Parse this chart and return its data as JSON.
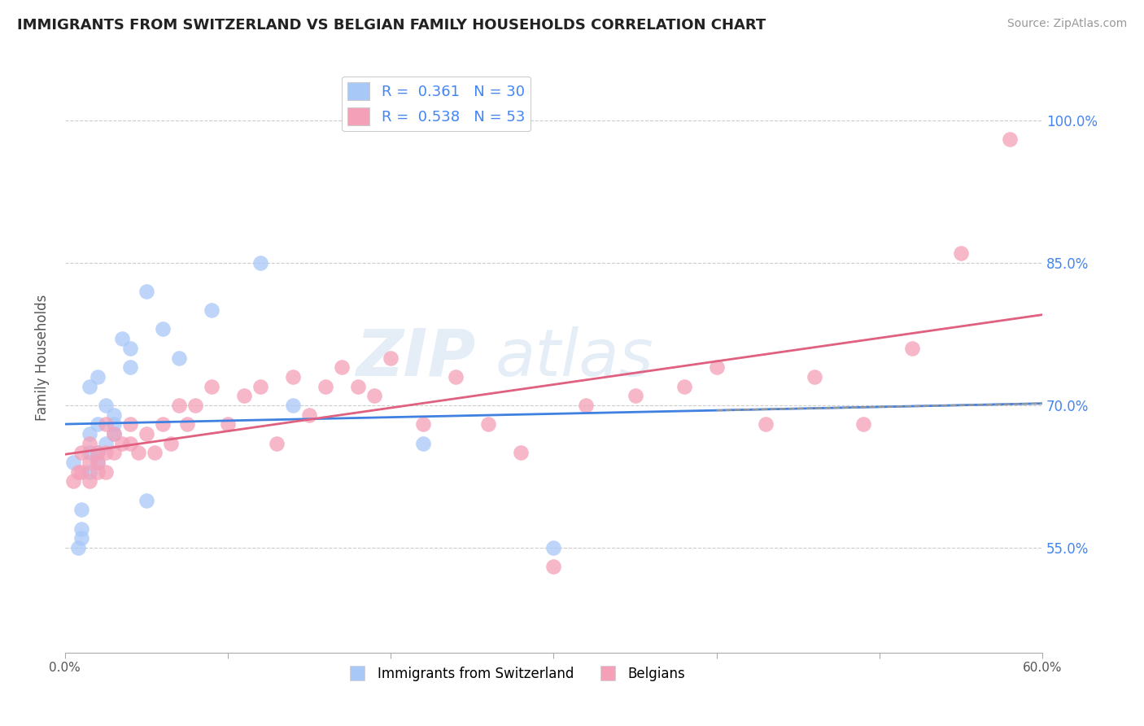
{
  "title": "IMMIGRANTS FROM SWITZERLAND VS BELGIAN FAMILY HOUSEHOLDS CORRELATION CHART",
  "source": "Source: ZipAtlas.com",
  "ylabel": "Family Households",
  "xlim": [
    0.0,
    0.6
  ],
  "ylim": [
    0.44,
    1.06
  ],
  "ytick_positions": [
    0.55,
    0.7,
    0.85,
    1.0
  ],
  "ytick_labels": [
    "55.0%",
    "70.0%",
    "85.0%",
    "100.0%"
  ],
  "xtick_positions": [
    0.0,
    0.1,
    0.2,
    0.3,
    0.4,
    0.5,
    0.6
  ],
  "xtick_labels": [
    "0.0%",
    "",
    "",
    "",
    "",
    "",
    "60.0%"
  ],
  "blue_color": "#a8c8f8",
  "pink_color": "#f4a0b8",
  "blue_line_color": "#4080e0",
  "pink_line_color": "#e06080",
  "tick_label_color": "#4285f4",
  "watermark_color": "#ccddf0",
  "swiss_x": [
    0.005,
    0.008,
    0.01,
    0.01,
    0.01,
    0.015,
    0.015,
    0.015,
    0.015,
    0.02,
    0.02,
    0.02,
    0.02,
    0.025,
    0.025,
    0.03,
    0.03,
    0.03,
    0.035,
    0.04,
    0.04,
    0.05,
    0.05,
    0.06,
    0.07,
    0.09,
    0.12,
    0.14,
    0.22,
    0.3
  ],
  "swiss_y": [
    0.64,
    0.55,
    0.57,
    0.56,
    0.59,
    0.63,
    0.65,
    0.67,
    0.72,
    0.64,
    0.65,
    0.68,
    0.73,
    0.66,
    0.7,
    0.67,
    0.68,
    0.69,
    0.77,
    0.74,
    0.76,
    0.6,
    0.82,
    0.78,
    0.75,
    0.8,
    0.85,
    0.7,
    0.66,
    0.55
  ],
  "belgian_x": [
    0.005,
    0.008,
    0.01,
    0.01,
    0.015,
    0.015,
    0.015,
    0.02,
    0.02,
    0.02,
    0.025,
    0.025,
    0.025,
    0.03,
    0.03,
    0.035,
    0.04,
    0.04,
    0.045,
    0.05,
    0.055,
    0.06,
    0.065,
    0.07,
    0.075,
    0.08,
    0.09,
    0.1,
    0.11,
    0.12,
    0.13,
    0.14,
    0.15,
    0.16,
    0.17,
    0.18,
    0.19,
    0.2,
    0.22,
    0.24,
    0.26,
    0.28,
    0.3,
    0.32,
    0.35,
    0.38,
    0.4,
    0.43,
    0.46,
    0.49,
    0.52,
    0.55,
    0.58
  ],
  "belgian_y": [
    0.62,
    0.63,
    0.63,
    0.65,
    0.62,
    0.64,
    0.66,
    0.63,
    0.64,
    0.65,
    0.63,
    0.65,
    0.68,
    0.65,
    0.67,
    0.66,
    0.66,
    0.68,
    0.65,
    0.67,
    0.65,
    0.68,
    0.66,
    0.7,
    0.68,
    0.7,
    0.72,
    0.68,
    0.71,
    0.72,
    0.66,
    0.73,
    0.69,
    0.72,
    0.74,
    0.72,
    0.71,
    0.75,
    0.68,
    0.73,
    0.68,
    0.65,
    0.53,
    0.7,
    0.71,
    0.72,
    0.74,
    0.68,
    0.73,
    0.68,
    0.76,
    0.86,
    0.98
  ],
  "background_color": "#ffffff",
  "grid_color": "#cccccc"
}
